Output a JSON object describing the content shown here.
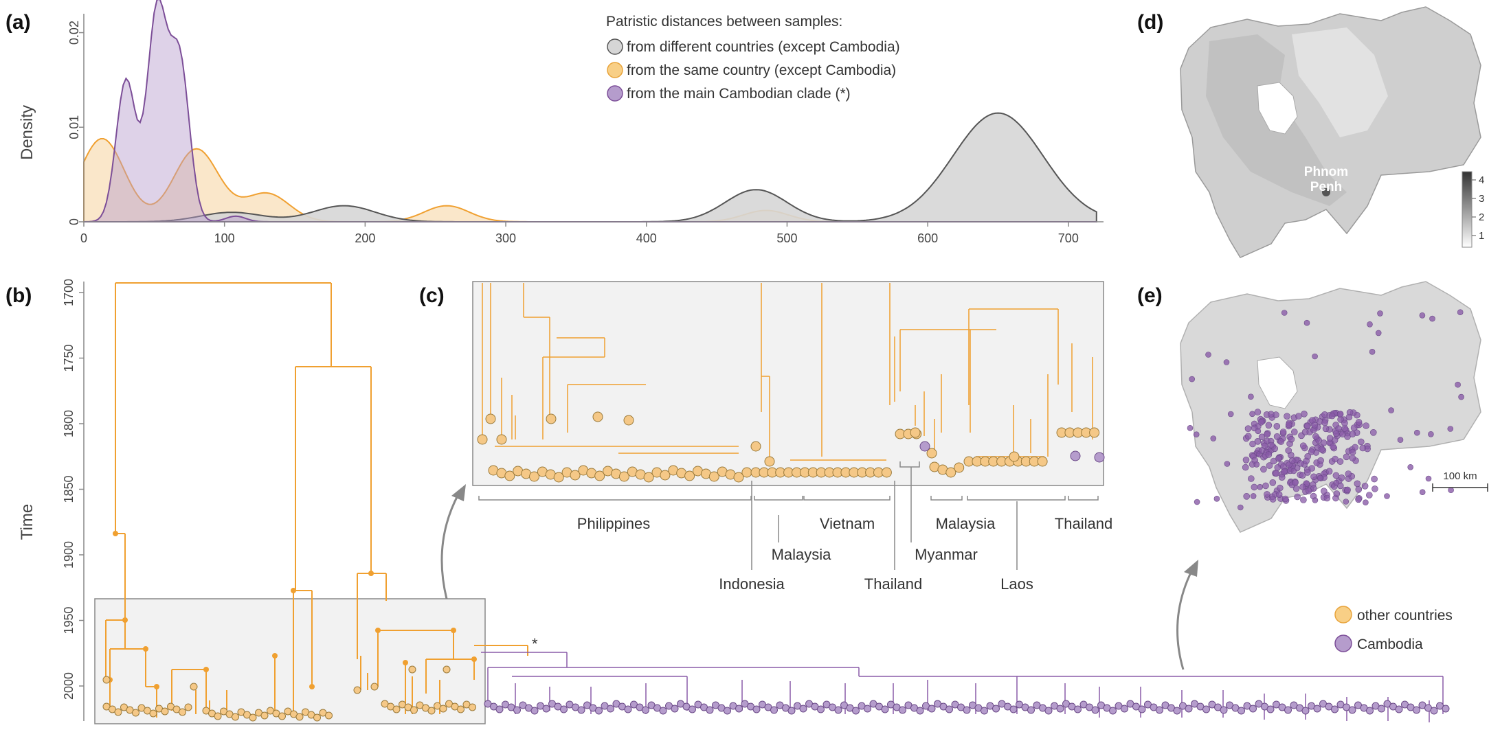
{
  "panels": {
    "a": "(a)",
    "b": "(b)",
    "c": "(c)",
    "d": "(d)",
    "e": "(e)"
  },
  "colors": {
    "different": "#d6d6d6",
    "same": "#f5a623",
    "cambodia": "#8a5ba8",
    "tip_orange": "#f5c887",
    "tip_purple": "#b59ccc"
  },
  "chart_data": [
    {
      "type": "area",
      "ylabel": "Density",
      "xlim": [
        0,
        725
      ],
      "ylim": [
        0,
        0.022
      ],
      "x_ticks": [
        "0",
        "100",
        "200",
        "300",
        "400",
        "500",
        "600",
        "700"
      ],
      "y_ticks": [
        "0",
        "0.01",
        "0.02"
      ],
      "legend_title": "Patristic distances between samples:",
      "series": [
        {
          "name": "from different countries (except Cambodia)",
          "color": "#d6d6d6",
          "peaks": [
            {
              "x": 105,
              "y": 0.001
            },
            {
              "x": 185,
              "y": 0.0017
            },
            {
              "x": 478,
              "y": 0.0034
            },
            {
              "x": 650,
              "y": 0.0115
            }
          ]
        },
        {
          "name": "from the same country (except Cambodia)",
          "color": "#f5a623",
          "peaks": [
            {
              "x": 13,
              "y": 0.0088
            },
            {
              "x": 80,
              "y": 0.0077
            },
            {
              "x": 130,
              "y": 0.003
            },
            {
              "x": 258,
              "y": 0.0017
            },
            {
              "x": 485,
              "y": 0.0012
            }
          ]
        },
        {
          "name": "from the main Cambodian clade (*)",
          "color": "#8a5ba8",
          "peaks": [
            {
              "x": 30,
              "y": 0.015
            },
            {
              "x": 52,
              "y": 0.0221
            },
            {
              "x": 68,
              "y": 0.017
            },
            {
              "x": 108,
              "y": 0.0006
            }
          ]
        }
      ]
    },
    {
      "type": "tree",
      "ylabel": "Time",
      "y_ticks": [
        "1700",
        "1750",
        "1800",
        "1850",
        "1900",
        "1950",
        "2000"
      ],
      "clade_marker": "*"
    }
  ],
  "panel_c": {
    "countries_top": [
      "Philippines",
      "Vietnam",
      "Malaysia",
      "Thailand"
    ],
    "countries_bottom": [
      "Malaysia",
      "Indonesia",
      "Myanmar",
      "Thailand",
      "Laos"
    ]
  },
  "map_d": {
    "city": [
      "Phnom",
      "Penh"
    ],
    "scale_ticks": [
      "4",
      "3",
      "2",
      "1"
    ]
  },
  "map_e": {
    "scale": "100 km",
    "legend": [
      "other countries",
      "Cambodia"
    ]
  }
}
